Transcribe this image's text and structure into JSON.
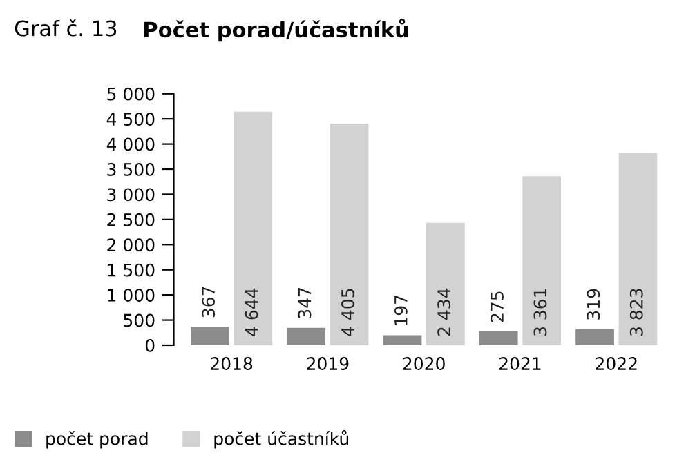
{
  "chart_data": {
    "type": "bar",
    "title": "Počet porad/účastníků",
    "annotations": [
      "Graf č. 13"
    ],
    "categories": [
      "2018",
      "2019",
      "2020",
      "2021",
      "2022"
    ],
    "series": [
      {
        "name": "počet porad",
        "color": "#8c8c8c",
        "values": [
          367,
          347,
          197,
          275,
          319
        ],
        "value_labels": [
          "367",
          "347",
          "197",
          "275",
          "319"
        ]
      },
      {
        "name": "počet účastníků",
        "color": "#d2d2d2",
        "values": [
          4644,
          4405,
          2434,
          3361,
          3823
        ],
        "value_labels": [
          "4 644",
          "4 405",
          "2 434",
          "3 361",
          "3 823"
        ]
      }
    ],
    "ylim": [
      0,
      5000
    ],
    "yticks": [
      {
        "value": 0,
        "label": "0"
      },
      {
        "value": 500,
        "label": "500"
      },
      {
        "value": 1000,
        "label": "1 000"
      },
      {
        "value": 1500,
        "label": "1 500"
      },
      {
        "value": 2000,
        "label": "2 000"
      },
      {
        "value": 2500,
        "label": "2 500"
      },
      {
        "value": 3000,
        "label": "3 000"
      },
      {
        "value": 3500,
        "label": "3 500"
      },
      {
        "value": 4000,
        "label": "4 000"
      },
      {
        "value": 4500,
        "label": "4 500"
      },
      {
        "value": 5000,
        "label": "5 000"
      }
    ],
    "grid": false,
    "legend": "bottom"
  }
}
